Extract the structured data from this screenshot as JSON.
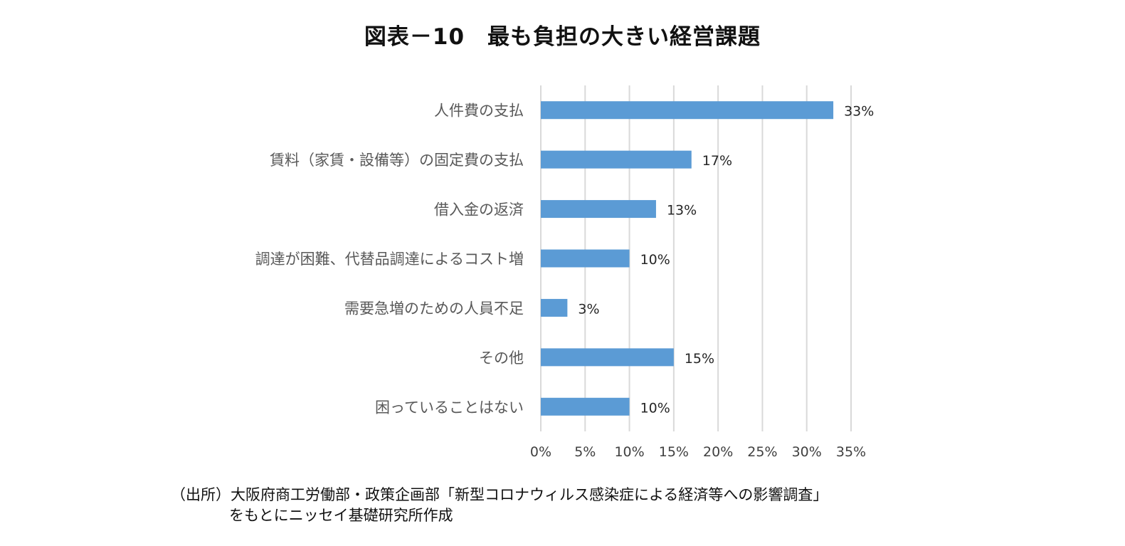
{
  "title": "図表－10　最も負担の大きい経営課題",
  "source": {
    "line1": "（出所）大阪府商工労働部・政策企画部「新型コロナウィルス感染症による経済等への影響調査」",
    "line2": "をもとにニッセイ基礎研究所作成"
  },
  "colors": {
    "bar": "#5b9bd5",
    "grid": "#d9d9d9",
    "category_text": "#595959",
    "value_text": "#262626",
    "tick_text": "#404040"
  },
  "chart_data": {
    "type": "bar",
    "orientation": "horizontal",
    "categories": [
      "人件費の支払",
      "賃料（家賃・設備等）の固定費の支払",
      "借入金の返済",
      "調達が困難、代替品調達によるコスト増",
      "需要急増のための人員不足",
      "その他",
      "困っていることはない"
    ],
    "values": [
      33,
      17,
      13,
      10,
      3,
      15,
      10
    ],
    "data_labels": [
      "33%",
      "17%",
      "13%",
      "10%",
      "3%",
      "15%",
      "10%"
    ],
    "xlim": [
      0,
      35
    ],
    "xticks": [
      0,
      5,
      10,
      15,
      20,
      25,
      30,
      35
    ],
    "xtick_labels": [
      "0%",
      "5%",
      "10%",
      "15%",
      "20%",
      "25%",
      "30%",
      "35%"
    ],
    "grid": true,
    "legend": false
  }
}
